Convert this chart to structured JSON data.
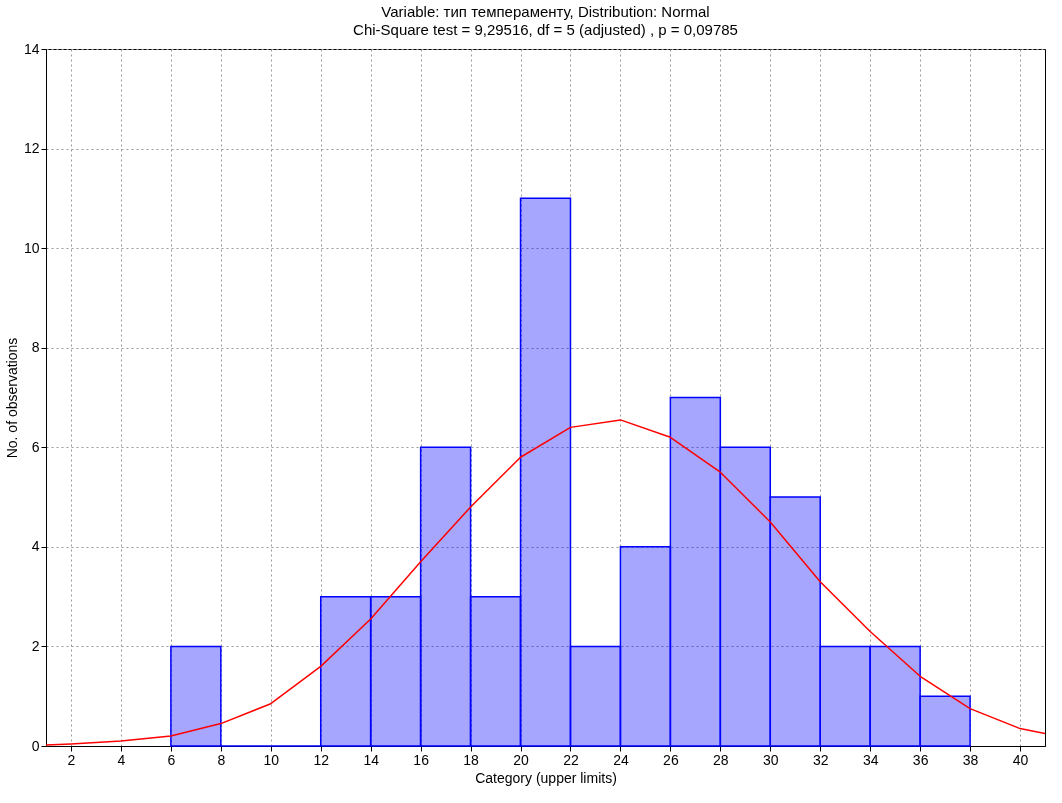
{
  "chart_data": {
    "type": "histogram",
    "title": "Variable: тип темпераменту, Distribution: Normal",
    "subtitle": "Chi-Square test = 9,29516, df = 5 (adjusted) , p = 0,09785",
    "xlabel": "Category (upper limits)",
    "ylabel": "No. of observations",
    "bins": [
      6,
      8,
      10,
      12,
      14,
      16,
      18,
      20,
      22,
      24,
      26,
      28,
      30,
      32,
      34,
      36,
      38
    ],
    "values": [
      2,
      0,
      0,
      3,
      3,
      6,
      3,
      11,
      2,
      4,
      7,
      6,
      5,
      2,
      2,
      1
    ],
    "color": "#0000ff",
    "series": [
      {
        "type": "line",
        "color": "#ff0000",
        "x": [
          1,
          2,
          4,
          6,
          8,
          10,
          12,
          14,
          16,
          18,
          20,
          22,
          24,
          26,
          28,
          30,
          32,
          34,
          36,
          38,
          40,
          41
        ],
        "values": [
          0.02,
          0.04,
          0.1,
          0.2,
          0.45,
          0.85,
          1.6,
          2.55,
          3.7,
          4.8,
          5.8,
          6.4,
          6.55,
          6.2,
          5.5,
          4.5,
          3.3,
          2.3,
          1.4,
          0.75,
          0.35,
          0.25
        ]
      }
    ],
    "xlim": [
      1,
      41
    ],
    "xticks": [
      2,
      4,
      6,
      8,
      10,
      12,
      14,
      16,
      18,
      20,
      22,
      24,
      26,
      28,
      30,
      32,
      34,
      36,
      38,
      40
    ],
    "ylim": [
      0,
      14
    ],
    "yticks": [
      0,
      2,
      4,
      6,
      8,
      10,
      12,
      14
    ],
    "grid": true
  }
}
